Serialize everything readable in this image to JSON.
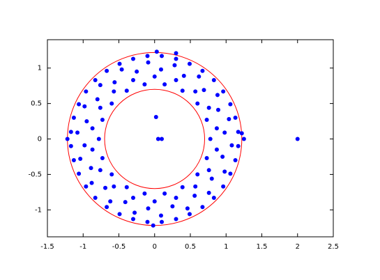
{
  "chart_data": {
    "type": "scatter",
    "series": [
      {
        "color": "#0000ff",
        "x": [
          0.78,
          0.73,
          0.6,
          0.39,
          0.14,
          -0.14,
          -0.39,
          -0.6,
          -0.73,
          -0.78,
          -0.73,
          -0.6,
          -0.39,
          -0.14,
          0.14,
          0.39,
          0.6,
          0.73,
          0.87,
          0.76,
          0.57,
          0.3,
          0,
          -0.3,
          -0.57,
          -0.76,
          -0.87,
          -0.87,
          -0.76,
          -0.57,
          -0.3,
          0,
          0.3,
          0.57,
          0.76,
          0.87,
          0.98,
          0.89,
          0.69,
          0.41,
          0.09,
          -0.25,
          -0.56,
          -0.8,
          -0.95,
          -0.98,
          -0.89,
          -0.69,
          -0.41,
          -0.09,
          0.25,
          0.56,
          0.8,
          0.95,
          1.04,
          0.88,
          0.62,
          0.28,
          -0.09,
          -0.46,
          -0.76,
          -0.98,
          -1.08,
          -1.04,
          -0.88,
          -0.62,
          -0.28,
          0.09,
          0.46,
          0.76,
          0.98,
          1.08,
          1.17,
          1.13,
          1.06,
          0.96,
          0.83,
          0.67,
          0.49,
          0.3,
          0.1,
          -0.1,
          -0.3,
          -0.49,
          -0.67,
          -0.83,
          -0.96,
          -1.06,
          -1.13,
          -1.17,
          -1.17,
          -1.13,
          -1.06,
          -0.96,
          -0.83,
          -0.67,
          -0.49,
          -0.3,
          -0.1,
          0.1,
          0.3,
          0.49,
          0.67,
          0.83,
          0.96,
          1.06,
          1.13,
          1.17,
          0.02,
          0.05,
          0.1,
          2,
          1.25,
          -1.22,
          0.03,
          0.3,
          -0.02,
          1.22
        ],
        "y": [
          0,
          0.27,
          0.5,
          0.68,
          0.77,
          0.77,
          0.68,
          0.5,
          0.27,
          0,
          -0.27,
          -0.5,
          -0.68,
          -0.77,
          -0.77,
          -0.68,
          -0.5,
          -0.27,
          0.15,
          0.44,
          0.67,
          0.83,
          0.88,
          0.83,
          0.67,
          0.44,
          0.15,
          -0.15,
          -0.44,
          -0.67,
          -0.83,
          -0.88,
          -0.83,
          -0.67,
          -0.44,
          -0.15,
          0.09,
          0.41,
          0.69,
          0.89,
          0.98,
          0.95,
          0.8,
          0.56,
          0.25,
          -0.09,
          -0.41,
          -0.69,
          -0.89,
          -0.98,
          -0.95,
          -0.8,
          -0.56,
          -0.25,
          0.28,
          0.62,
          0.88,
          1.04,
          1.08,
          0.98,
          0.76,
          0.46,
          0.09,
          -0.28,
          -0.62,
          -0.88,
          -1.04,
          -1.08,
          -0.98,
          -0.76,
          -0.46,
          -0.09,
          0.1,
          0.3,
          0.49,
          0.67,
          0.83,
          0.96,
          1.06,
          1.13,
          1.17,
          1.17,
          1.13,
          1.06,
          0.96,
          0.83,
          0.67,
          0.49,
          0.3,
          0.1,
          -0.1,
          -0.3,
          -0.49,
          -0.67,
          -0.83,
          -0.96,
          -1.06,
          -1.13,
          -1.17,
          -1.17,
          -1.13,
          -1.06,
          -0.96,
          -0.83,
          -0.67,
          -0.49,
          -0.3,
          -0.1,
          0.31,
          0,
          0,
          0,
          0,
          0,
          1.23,
          1.21,
          -1.22,
          0.08
        ]
      }
    ],
    "circles": [
      {
        "cx": 0,
        "cy": 0,
        "r": 0.7,
        "color": "#ff0000"
      },
      {
        "cx": 0,
        "cy": 0,
        "r": 1.22,
        "color": "#ff0000"
      }
    ],
    "xlim": [
      -1.5,
      2.5
    ],
    "ylim": [
      -1.38,
      1.4
    ],
    "xticks": [
      -1.5,
      -1,
      -0.5,
      0,
      0.5,
      1,
      1.5,
      2,
      2.5
    ],
    "yticks": [
      -1,
      -0.5,
      0,
      0.5,
      1
    ]
  }
}
